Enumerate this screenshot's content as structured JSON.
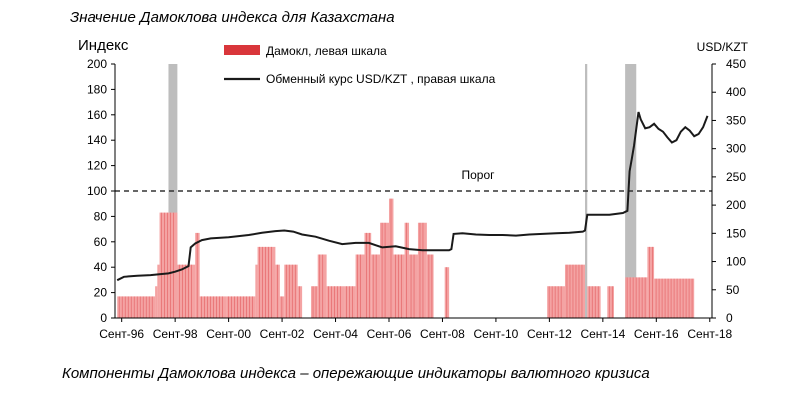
{
  "title": "Значение Дамоклова индекса для Казахстана",
  "caption": "Компоненты Дамоклова индекса – опережающие индикаторы валютного кризиса",
  "chart_data": {
    "type": "bar",
    "title": "Значение Дамоклова индекса для Казахстана",
    "ylabel_left": "Индекс",
    "ylabel_right": "USD/KZT",
    "y_left": {
      "lim": [
        0,
        200
      ],
      "ticks": [
        0,
        20,
        40,
        60,
        80,
        100,
        120,
        140,
        160,
        180,
        200
      ]
    },
    "y_right": {
      "lim": [
        0,
        450
      ],
      "ticks": [
        0,
        50,
        100,
        150,
        200,
        250,
        300,
        350,
        400,
        450
      ]
    },
    "x_range": [
      "1996-06",
      "2018-10"
    ],
    "x_ticks": [
      {
        "date": "1996-09",
        "label": "Сент-96"
      },
      {
        "date": "1998-09",
        "label": "Сент-98"
      },
      {
        "date": "2000-09",
        "label": "Сент-00"
      },
      {
        "date": "2002-09",
        "label": "Сент-02"
      },
      {
        "date": "2004-09",
        "label": "Сент-04"
      },
      {
        "date": "2006-09",
        "label": "Сент-06"
      },
      {
        "date": "2008-09",
        "label": "Сент-08"
      },
      {
        "date": "2010-09",
        "label": "Сент-10"
      },
      {
        "date": "2012-09",
        "label": "Сент-12"
      },
      {
        "date": "2014-09",
        "label": "Сент-14"
      },
      {
        "date": "2016-09",
        "label": "Сент-16"
      },
      {
        "date": "2018-09",
        "label": "Сент-18"
      }
    ],
    "threshold": {
      "value": 100,
      "label": "Порог",
      "style": "dashed"
    },
    "legend": {
      "placement": "top",
      "items": [
        {
          "label": "Дамокл, левая шкала",
          "kind": "bar",
          "color": "#d9363b"
        },
        {
          "label": "Обменный курс USD/KZT , правая шкала",
          "kind": "line",
          "color": "#1a1a1a"
        }
      ]
    },
    "shaded_periods": [
      {
        "start": "1998-06",
        "end": "1998-10",
        "color": "#bdbdbd"
      },
      {
        "start": "2014-01",
        "end": "2014-02",
        "color": "#bdbdbd"
      },
      {
        "start": "2015-07",
        "end": "2015-12",
        "color": "#bdbdbd"
      }
    ],
    "series": [
      {
        "name": "Дамокл, левая шкала",
        "axis": "left",
        "color": "#f4a3a3",
        "edge_color": "#d9363b",
        "bars": [
          {
            "start": "1996-07",
            "end": "1997-12",
            "value": 17
          },
          {
            "start": "1997-12",
            "end": "1998-01",
            "value": 25
          },
          {
            "start": "1998-01",
            "end": "1998-02",
            "value": 42
          },
          {
            "start": "1998-02",
            "end": "1998-10",
            "value": 83
          },
          {
            "start": "1998-10",
            "end": "1999-06",
            "value": 42
          },
          {
            "start": "1999-06",
            "end": "1999-08",
            "value": 67
          },
          {
            "start": "1999-08",
            "end": "2000-08",
            "value": 17
          },
          {
            "start": "2000-08",
            "end": "2001-09",
            "value": 17
          },
          {
            "start": "2001-09",
            "end": "2001-10",
            "value": 42
          },
          {
            "start": "2001-10",
            "end": "2002-06",
            "value": 56
          },
          {
            "start": "2002-06",
            "end": "2002-08",
            "value": 42
          },
          {
            "start": "2002-08",
            "end": "2002-10",
            "value": 17
          },
          {
            "start": "2002-10",
            "end": "2003-04",
            "value": 42
          },
          {
            "start": "2003-04",
            "end": "2003-06",
            "value": 25
          },
          {
            "start": "2003-10",
            "end": "2004-01",
            "value": 25
          },
          {
            "start": "2004-01",
            "end": "2004-05",
            "value": 50
          },
          {
            "start": "2004-05",
            "end": "2005-01",
            "value": 25
          },
          {
            "start": "2005-01",
            "end": "2005-06",
            "value": 25
          },
          {
            "start": "2005-06",
            "end": "2005-10",
            "value": 50
          },
          {
            "start": "2005-10",
            "end": "2006-01",
            "value": 67
          },
          {
            "start": "2006-01",
            "end": "2006-05",
            "value": 50
          },
          {
            "start": "2006-05",
            "end": "2006-09",
            "value": 75
          },
          {
            "start": "2006-09",
            "end": "2006-11",
            "value": 94
          },
          {
            "start": "2006-11",
            "end": "2007-04",
            "value": 50
          },
          {
            "start": "2007-04",
            "end": "2007-06",
            "value": 75
          },
          {
            "start": "2007-06",
            "end": "2007-10",
            "value": 50
          },
          {
            "start": "2007-10",
            "end": "2008-02",
            "value": 75
          },
          {
            "start": "2008-02",
            "end": "2008-05",
            "value": 50
          },
          {
            "start": "2008-10",
            "end": "2008-12",
            "value": 40
          },
          {
            "start": "2012-08",
            "end": "2013-04",
            "value": 25
          },
          {
            "start": "2013-04",
            "end": "2014-01",
            "value": 42
          },
          {
            "start": "2014-02",
            "end": "2014-08",
            "value": 25
          },
          {
            "start": "2014-11",
            "end": "2015-02",
            "value": 25
          },
          {
            "start": "2015-07",
            "end": "2016-05",
            "value": 32
          },
          {
            "start": "2016-05",
            "end": "2016-08",
            "value": 56
          },
          {
            "start": "2016-08",
            "end": "2018-02",
            "value": 31
          }
        ]
      },
      {
        "name": "Обменный курс USD/KZT , правая шкала",
        "axis": "right",
        "color": "#1a1a1a",
        "points": [
          [
            "1996-07",
            67
          ],
          [
            "1996-10",
            73
          ],
          [
            "1997-04",
            75
          ],
          [
            "1997-10",
            76
          ],
          [
            "1998-03",
            78
          ],
          [
            "1998-06",
            79
          ],
          [
            "1998-09",
            82
          ],
          [
            "1998-12",
            86
          ],
          [
            "1999-03",
            92
          ],
          [
            "1999-04",
            125
          ],
          [
            "1999-06",
            132
          ],
          [
            "1999-09",
            138
          ],
          [
            "2000-01",
            141
          ],
          [
            "2000-09",
            143
          ],
          [
            "2001-06",
            147
          ],
          [
            "2001-12",
            151
          ],
          [
            "2002-06",
            154
          ],
          [
            "2002-10",
            155
          ],
          [
            "2003-02",
            153
          ],
          [
            "2003-06",
            148
          ],
          [
            "2003-12",
            144
          ],
          [
            "2004-06",
            137
          ],
          [
            "2004-12",
            131
          ],
          [
            "2005-06",
            133
          ],
          [
            "2005-12",
            133
          ],
          [
            "2006-03",
            129
          ],
          [
            "2006-06",
            125
          ],
          [
            "2006-12",
            127
          ],
          [
            "2007-06",
            122
          ],
          [
            "2007-12",
            120
          ],
          [
            "2008-06",
            120
          ],
          [
            "2008-12",
            120
          ],
          [
            "2009-01",
            122
          ],
          [
            "2009-02",
            149
          ],
          [
            "2009-06",
            150
          ],
          [
            "2009-12",
            148
          ],
          [
            "2010-06",
            147
          ],
          [
            "2010-12",
            147
          ],
          [
            "2011-06",
            146
          ],
          [
            "2011-12",
            148
          ],
          [
            "2012-06",
            149
          ],
          [
            "2012-12",
            150
          ],
          [
            "2013-06",
            151
          ],
          [
            "2013-12",
            153
          ],
          [
            "2014-01",
            155
          ],
          [
            "2014-02",
            183
          ],
          [
            "2014-06",
            183
          ],
          [
            "2014-12",
            183
          ],
          [
            "2015-06",
            186
          ],
          [
            "2015-08",
            190
          ],
          [
            "2015-09",
            260
          ],
          [
            "2015-10",
            282
          ],
          [
            "2015-11",
            305
          ],
          [
            "2016-01",
            365
          ],
          [
            "2016-02",
            352
          ],
          [
            "2016-04",
            336
          ],
          [
            "2016-06",
            338
          ],
          [
            "2016-08",
            344
          ],
          [
            "2016-10",
            335
          ],
          [
            "2016-12",
            330
          ],
          [
            "2017-02",
            320
          ],
          [
            "2017-04",
            311
          ],
          [
            "2017-06",
            315
          ],
          [
            "2017-08",
            330
          ],
          [
            "2017-10",
            338
          ],
          [
            "2017-12",
            332
          ],
          [
            "2018-02",
            322
          ],
          [
            "2018-04",
            326
          ],
          [
            "2018-06",
            338
          ],
          [
            "2018-08",
            358
          ]
        ]
      }
    ]
  }
}
